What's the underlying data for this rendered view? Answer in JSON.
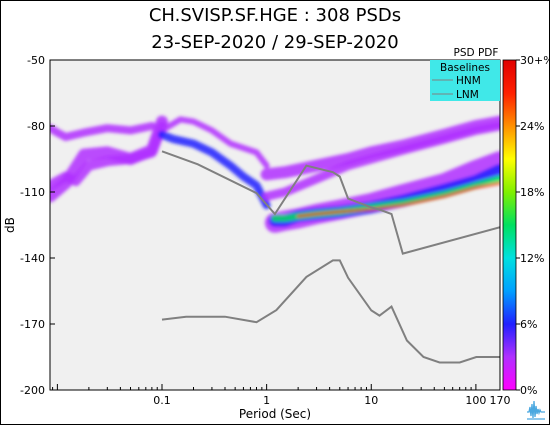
{
  "header": {
    "title": "CH.SVISP.SF.HGE : 308 PSDs",
    "subtitle": "23-SEP-2020 / 29-SEP-2020"
  },
  "colorbar": {
    "title": "PSD PDF",
    "tick_labels": [
      "30+%",
      "24%",
      "18%",
      "12%",
      "6%",
      "0%"
    ]
  },
  "chart_data": {
    "type": "heatmap",
    "title": "CH.SVISP.SF.HGE : 308 PSDs",
    "subtitle": "23-SEP-2020 / 29-SEP-2020",
    "xlabel": "Period (Sec)",
    "ylabel": "dB",
    "x_scale": "log",
    "xlim": [
      0.0085,
      170
    ],
    "ylim": [
      -200,
      -50
    ],
    "x_tick_labels": [
      "0.1",
      "1",
      "10",
      "100",
      "170"
    ],
    "x_ticks": [
      0.1,
      1,
      10,
      100,
      170
    ],
    "y_ticks": [
      -50,
      -80,
      -110,
      -140,
      -170,
      -200
    ],
    "y_tick_labels": [
      "-50",
      "-80",
      "-110",
      "-140",
      "-170",
      "-200"
    ],
    "background": "#f0f0f0",
    "legend": {
      "title": "Baselines",
      "placement": "top-right",
      "background": "#40e8e8",
      "entries": [
        {
          "label": "HNM",
          "color": "#808080"
        },
        {
          "label": "LNM",
          "color": "#808080"
        }
      ]
    },
    "colorbar": {
      "label": "PSD PDF",
      "range_percent": [
        0,
        30
      ],
      "tick_labels": [
        "30+%",
        "24%",
        "18%",
        "12%",
        "6%",
        "0%"
      ],
      "colors": [
        "#ff00ff",
        "#b030ff",
        "#2020ff",
        "#00a0ff",
        "#00e0e0",
        "#00e060",
        "#80f000",
        "#ffff00",
        "#ff9000",
        "#ff2000",
        "#e00000"
      ]
    },
    "series": [
      {
        "name": "HNM",
        "color": "#808080",
        "x": [
          0.1,
          0.22,
          0.8,
          1.2,
          2.4,
          4.3,
          5,
          6,
          10,
          12,
          15.6,
          20,
          170
        ],
        "y": [
          -91.5,
          -97.4,
          -110.5,
          -120.0,
          -98.0,
          -101.0,
          -103.0,
          -113.0,
          -117.0,
          -118.0,
          -120.0,
          -138.0,
          -126.0
        ]
      },
      {
        "name": "LNM",
        "color": "#808080",
        "x": [
          0.1,
          0.17,
          0.4,
          0.8,
          1.24,
          2.4,
          4.3,
          5,
          6,
          10,
          12,
          15.6,
          21.9,
          31.6,
          45,
          70,
          101,
          154,
          170
        ],
        "y": [
          -168.0,
          -166.7,
          -166.7,
          -169.2,
          -163.7,
          -148.6,
          -141.1,
          -141.1,
          -149.0,
          -163.8,
          -166.2,
          -162.1,
          -177.5,
          -185.0,
          -187.5,
          -187.5,
          -185.0,
          -185.0,
          -185.0
        ]
      }
    ],
    "pdf_ridges": [
      {
        "pct": 2,
        "width": 12,
        "x": [
          0.0085,
          0.012,
          0.018,
          0.03,
          0.05,
          0.08,
          0.1
        ],
        "y": [
          -112,
          -106,
          -93,
          -92,
          -95,
          -91,
          -78
        ]
      },
      {
        "pct": 2,
        "width": 8,
        "x": [
          0.0085,
          0.01,
          0.012,
          0.018,
          0.03,
          0.05,
          0.08
        ],
        "y": [
          -81,
          -83,
          -85,
          -83,
          -81,
          -82,
          -80
        ]
      },
      {
        "pct": 3,
        "width": 6,
        "x": [
          0.1,
          0.15,
          0.2,
          0.3,
          0.45,
          0.6,
          0.8,
          1.0
        ],
        "y": [
          -82,
          -77,
          -78,
          -82,
          -88,
          -90,
          -92,
          -98
        ]
      },
      {
        "pct": 4,
        "width": 10,
        "x": [
          0.0085,
          0.012,
          0.015,
          0.02,
          0.03,
          0.05,
          0.08,
          0.1
        ],
        "y": [
          -107,
          -103,
          -105,
          -98,
          -96,
          -95,
          -92,
          -80
        ]
      },
      {
        "pct": 6,
        "width": 8,
        "x": [
          0.1,
          0.13,
          0.2,
          0.3,
          0.45,
          0.6,
          0.8,
          1.0
        ],
        "y": [
          -84,
          -86,
          -88,
          -92,
          -98,
          -103,
          -107,
          -116
        ]
      },
      {
        "pct": 3,
        "width": 12,
        "x": [
          1.0,
          1.5,
          3,
          6,
          10,
          20,
          50,
          100,
          170
        ],
        "y": [
          -102,
          -101,
          -98,
          -95,
          -92,
          -89,
          -84,
          -80,
          -78
        ]
      },
      {
        "pct": 2,
        "width": 9,
        "x": [
          1.0,
          1.5,
          3,
          6,
          10,
          20,
          50,
          100,
          170
        ],
        "y": [
          -112,
          -110,
          -104,
          -98,
          -95,
          -91,
          -86,
          -82,
          -80
        ]
      },
      {
        "pct": 4,
        "width": 20,
        "x": [
          1.2,
          1.5,
          2,
          3,
          5,
          10,
          20,
          50,
          100,
          170
        ],
        "y": [
          -124,
          -123,
          -122,
          -120,
          -118,
          -115,
          -111,
          -106,
          -100,
          -96
        ]
      },
      {
        "pct": 7,
        "width": 12,
        "x": [
          1.2,
          1.5,
          2,
          3,
          5,
          10,
          20,
          50,
          100,
          170
        ],
        "y": [
          -123,
          -123,
          -121,
          -120,
          -119,
          -117,
          -114,
          -109,
          -105,
          -100
        ]
      },
      {
        "pct": 14,
        "width": 7,
        "x": [
          1.2,
          1.5,
          2,
          3,
          5,
          10,
          20,
          50,
          100,
          170
        ],
        "y": [
          -122,
          -122,
          -121,
          -120,
          -119,
          -117,
          -115,
          -111,
          -107,
          -104
        ]
      },
      {
        "pct": 26,
        "width": 2.5,
        "x": [
          2,
          3,
          5,
          10,
          20,
          50,
          100,
          170
        ],
        "y": [
          -121,
          -120,
          -119,
          -118,
          -116,
          -112,
          -108,
          -106
        ]
      }
    ]
  }
}
